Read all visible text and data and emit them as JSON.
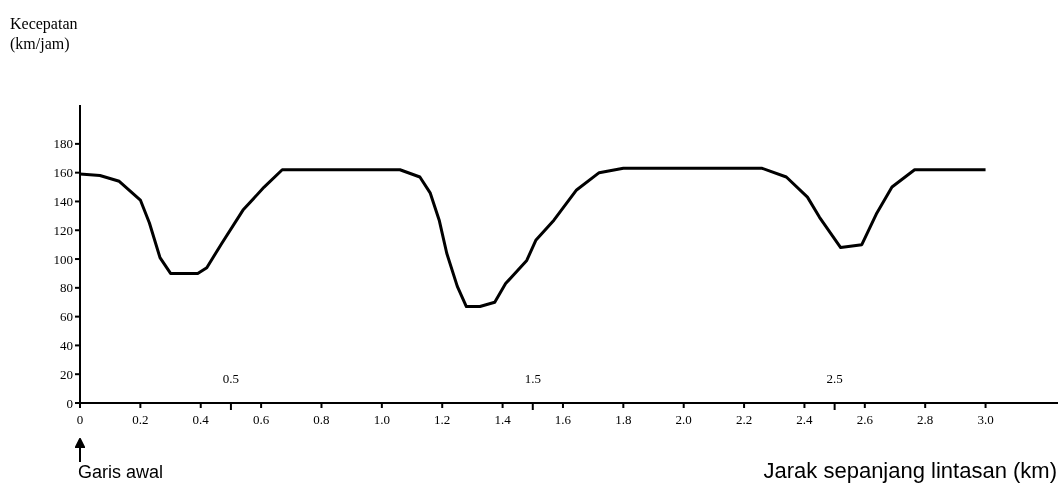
{
  "chart_data": {
    "type": "line",
    "xlabel": "Jarak sepanjang lintasan (km)",
    "ylabel": "Kecepatan\n(km/jam)",
    "annotations": [
      "Garis awal"
    ],
    "x": [
      0,
      0.066,
      0.13,
      0.2,
      0.23,
      0.265,
      0.3,
      0.39,
      0.42,
      0.47,
      0.54,
      0.61,
      0.67,
      1.06,
      1.126,
      1.16,
      1.19,
      1.215,
      1.25,
      1.28,
      1.325,
      1.374,
      1.41,
      1.48,
      1.51,
      1.57,
      1.645,
      1.72,
      1.8,
      2.26,
      2.34,
      2.41,
      2.45,
      2.52,
      2.59,
      2.64,
      2.69,
      2.765,
      3.0
    ],
    "series": [
      {
        "color": "#000000",
        "values": [
          159,
          158,
          154,
          141,
          125,
          101,
          90,
          90,
          94,
          111,
          134,
          150,
          162,
          162,
          157,
          146,
          127,
          104,
          81,
          67,
          67,
          70,
          83,
          99,
          113,
          127,
          148,
          160,
          163,
          163,
          157,
          143,
          129,
          108,
          110,
          132,
          150,
          162,
          162
        ]
      }
    ],
    "xlim": [
      0,
      3.24
    ],
    "ylim": [
      0,
      207
    ],
    "xticks": [
      0,
      0.2,
      0.4,
      0.6,
      0.8,
      {
        "value": 1,
        "label": "1.0"
      },
      1.2,
      1.4,
      1.6,
      1.8,
      {
        "value": 2,
        "label": "2.0"
      },
      2.2,
      2.4,
      2.6,
      2.8,
      {
        "value": 3,
        "label": "3.0"
      }
    ],
    "x2lim": [
      0,
      3.24
    ],
    "x2ticks": [
      0.5,
      1.5,
      2.5
    ],
    "yticks": [
      0,
      20,
      40,
      60,
      80,
      100,
      120,
      140,
      160,
      180
    ],
    "grid": false,
    "legend": false,
    "marker": "none",
    "line_style": "solid"
  }
}
